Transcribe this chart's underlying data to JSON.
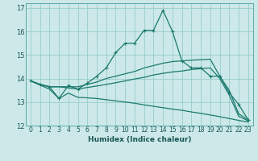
{
  "xlabel": "Humidex (Indice chaleur)",
  "background_color": "#cce8e8",
  "grid_color": "#99cccc",
  "line_color": "#1a7a6e",
  "xlim": [
    -0.5,
    23.5
  ],
  "ylim": [
    12,
    17.2
  ],
  "xticks": [
    0,
    1,
    2,
    3,
    4,
    5,
    6,
    7,
    8,
    9,
    10,
    11,
    12,
    13,
    14,
    15,
    16,
    17,
    18,
    19,
    20,
    21,
    22,
    23
  ],
  "yticks": [
    12,
    13,
    14,
    15,
    16,
    17
  ],
  "curves": [
    {
      "x": [
        0,
        1,
        2,
        3,
        4,
        5,
        6,
        7,
        8,
        9,
        10,
        11,
        12,
        13,
        14,
        15,
        16,
        17,
        18,
        19,
        20,
        21,
        22,
        23
      ],
      "y": [
        13.9,
        13.75,
        13.65,
        13.15,
        13.7,
        13.55,
        13.8,
        14.1,
        14.45,
        15.1,
        15.5,
        15.5,
        16.05,
        16.05,
        16.9,
        16.0,
        14.75,
        14.45,
        14.45,
        14.1,
        14.1,
        13.4,
        12.9,
        12.25
      ],
      "marker": "+"
    },
    {
      "x": [
        0,
        1,
        2,
        3,
        4,
        5,
        6,
        7,
        8,
        9,
        10,
        11,
        12,
        13,
        14,
        15,
        16,
        17,
        18,
        19,
        20,
        21,
        22,
        23
      ],
      "y": [
        13.9,
        13.75,
        13.65,
        13.65,
        13.65,
        13.65,
        13.75,
        13.85,
        14.0,
        14.1,
        14.2,
        14.3,
        14.45,
        14.55,
        14.65,
        14.72,
        14.75,
        14.78,
        14.8,
        14.82,
        14.1,
        13.5,
        12.5,
        12.25
      ],
      "marker": null
    },
    {
      "x": [
        0,
        1,
        2,
        3,
        4,
        5,
        6,
        7,
        8,
        9,
        10,
        11,
        12,
        13,
        14,
        15,
        16,
        17,
        18,
        19,
        20,
        21,
        22,
        23
      ],
      "y": [
        13.9,
        13.75,
        13.65,
        13.65,
        13.6,
        13.55,
        13.62,
        13.68,
        13.75,
        13.82,
        13.9,
        13.98,
        14.05,
        14.15,
        14.22,
        14.28,
        14.32,
        14.38,
        14.42,
        14.45,
        14.0,
        13.3,
        12.4,
        12.2
      ],
      "marker": null
    },
    {
      "x": [
        0,
        1,
        2,
        3,
        4,
        5,
        6,
        7,
        8,
        9,
        10,
        11,
        12,
        13,
        14,
        15,
        16,
        17,
        18,
        19,
        20,
        21,
        22,
        23
      ],
      "y": [
        13.9,
        13.72,
        13.55,
        13.15,
        13.38,
        13.2,
        13.18,
        13.15,
        13.1,
        13.05,
        13.0,
        12.95,
        12.88,
        12.82,
        12.76,
        12.7,
        12.65,
        12.58,
        12.52,
        12.45,
        12.38,
        12.3,
        12.22,
        12.15
      ],
      "marker": null
    }
  ]
}
